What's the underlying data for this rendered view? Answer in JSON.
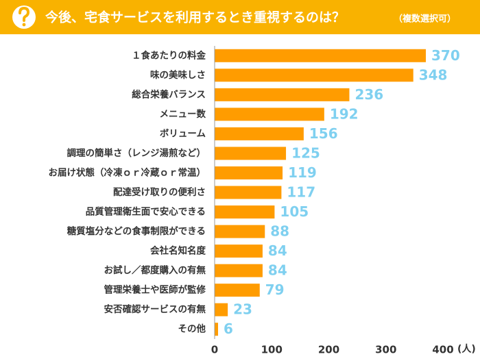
{
  "chart_data": {
    "type": "bar",
    "orientation": "horizontal",
    "title": "今後、宅食サービスを利用するとき重視するのは？",
    "subtitle": "（複数選択可）",
    "x_label": "(人)",
    "categories": [
      "１食あたりの料金",
      "味の美味しさ",
      "総合栄養バランス",
      "メニュー数",
      "ボリューム",
      "調理の簡単さ（レンジ湯煎など）",
      "お届け状態（冷凍ｏｒ冷蔵ｏｒ常温）",
      "配達受け取りの便利さ",
      "品質管理衛生面で安心できる",
      "糖質塩分などの食事制限ができる",
      "会社名知名度",
      "お試し／都度購入の有無",
      "管理栄養士や医師が監修",
      "安否確認サービスの有無",
      "その他"
    ],
    "values": [
      370,
      348,
      236,
      192,
      156,
      125,
      119,
      117,
      105,
      88,
      84,
      84,
      79,
      23,
      6
    ],
    "color": "#ff9c00",
    "label_color": "#7fd0f0",
    "header_color": "#f9b200",
    "xlim": [
      0,
      400
    ],
    "xticks": [
      0,
      100,
      200,
      300,
      400
    ],
    "grid": false
  }
}
